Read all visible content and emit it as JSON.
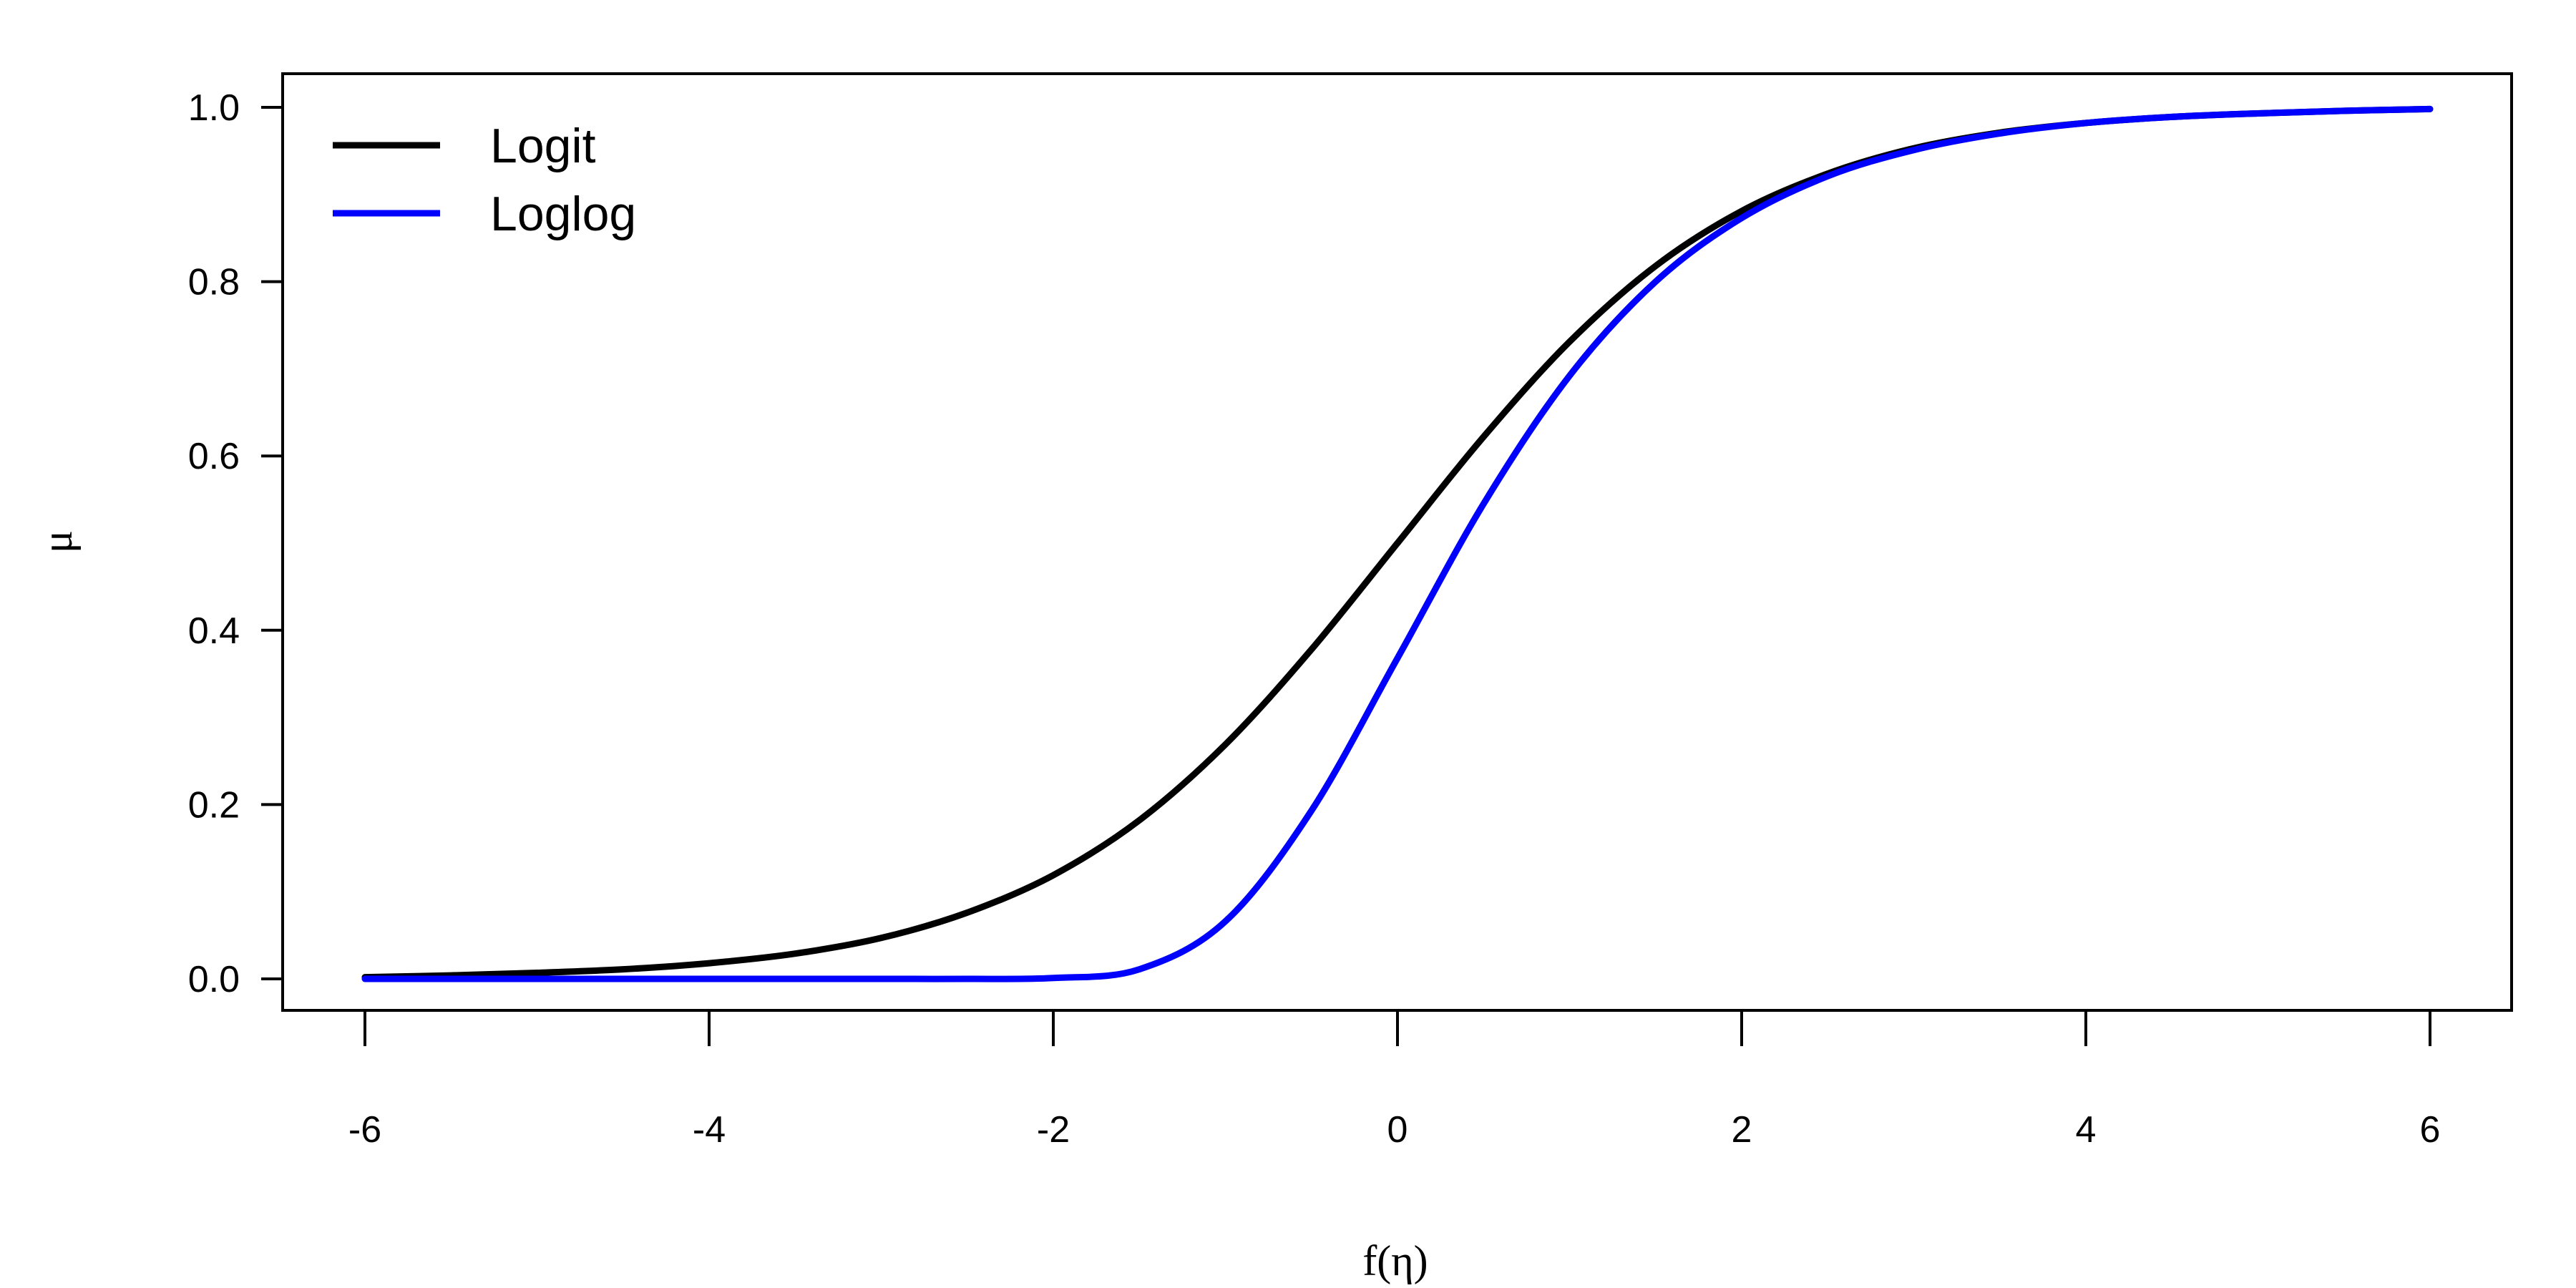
{
  "chart_data": {
    "type": "line",
    "title": "",
    "xlabel": "f(η)",
    "ylabel": "μ",
    "xlim": [
      -6,
      6
    ],
    "ylim": [
      0,
      1
    ],
    "xticks": [
      -6,
      -4,
      -2,
      0,
      2,
      4,
      6
    ],
    "xtick_labels": [
      "-6",
      "-4",
      "-2",
      "0",
      "2",
      "4",
      "6"
    ],
    "yticks": [
      0.0,
      0.2,
      0.4,
      0.6,
      0.8,
      1.0
    ],
    "ytick_labels": [
      "0.0",
      "0.2",
      "0.4",
      "0.6",
      "0.8",
      "1.0"
    ],
    "grid": false,
    "legend_position": "top-left",
    "x": [
      -6,
      -5.5,
      -5,
      -4.5,
      -4,
      -3.5,
      -3,
      -2.5,
      -2,
      -1.5,
      -1,
      -0.5,
      0,
      0.5,
      1,
      1.5,
      2,
      2.5,
      3,
      3.5,
      4,
      4.5,
      5,
      5.5,
      6
    ],
    "series": [
      {
        "name": "Logit",
        "color": "#000000",
        "values": [
          0.002,
          0.004,
          0.007,
          0.011,
          0.018,
          0.029,
          0.047,
          0.076,
          0.119,
          0.182,
          0.269,
          0.378,
          0.5,
          0.622,
          0.731,
          0.818,
          0.881,
          0.924,
          0.953,
          0.971,
          0.982,
          0.989,
          0.993,
          0.996,
          0.998
        ]
      },
      {
        "name": "Loglog",
        "color": "#0000ff",
        "values": [
          0.0,
          0.0,
          0.0,
          0.0,
          0.0,
          0.0,
          0.0,
          0.0,
          0.001,
          0.011,
          0.066,
          0.193,
          0.368,
          0.545,
          0.692,
          0.8,
          0.873,
          0.921,
          0.951,
          0.97,
          0.982,
          0.989,
          0.993,
          0.996,
          0.998
        ]
      }
    ]
  }
}
